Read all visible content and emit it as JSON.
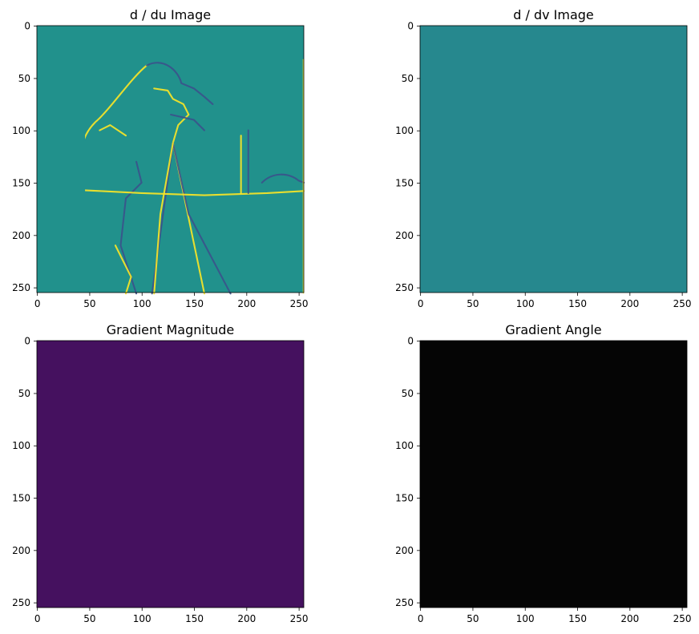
{
  "chart_data": [
    {
      "type": "heatmap",
      "title": "d / du Image",
      "colormap": "viridis",
      "background_color": "#21918c",
      "edge_color_pos": "#fde725",
      "edge_color_neg": "#3b528b",
      "xlim": [
        0,
        255
      ],
      "ylim": [
        255,
        0
      ],
      "xticks": [
        0,
        50,
        100,
        150,
        200,
        250
      ],
      "yticks": [
        0,
        50,
        100,
        150,
        200,
        250
      ],
      "xlabel": "",
      "ylabel": ""
    },
    {
      "type": "heatmap",
      "title": "d / dv Image",
      "colormap": "viridis",
      "background_color": "#26888e",
      "edge_color_pos": "#7ad151",
      "edge_color_neg": "#414487",
      "xlim": [
        0,
        255
      ],
      "ylim": [
        255,
        0
      ],
      "xticks": [
        0,
        50,
        100,
        150,
        200,
        250
      ],
      "yticks": [
        0,
        50,
        100,
        150,
        200,
        250
      ],
      "xlabel": "",
      "ylabel": ""
    },
    {
      "type": "heatmap",
      "title": "Gradient Magnitude",
      "colormap": "viridis",
      "background_color": "#45115f",
      "edge_color_pos": "#35b779",
      "edge_color_neg": "#2a788e",
      "xlim": [
        0,
        255
      ],
      "ylim": [
        255,
        0
      ],
      "xticks": [
        0,
        50,
        100,
        150,
        200,
        250
      ],
      "yticks": [
        0,
        50,
        100,
        150,
        200,
        250
      ],
      "xlabel": "",
      "ylabel": ""
    },
    {
      "type": "heatmap",
      "title": "Gradient Angle",
      "colormap": "hsv",
      "background_color": "#050505",
      "edge_color_pos": "#d4a017",
      "edge_color_neg": "#c01060",
      "xlim": [
        0,
        255
      ],
      "ylim": [
        255,
        0
      ],
      "xticks": [
        0,
        50,
        100,
        150,
        200,
        250
      ],
      "yticks": [
        0,
        50,
        100,
        150,
        200,
        250
      ],
      "xlabel": "",
      "ylabel": ""
    }
  ]
}
